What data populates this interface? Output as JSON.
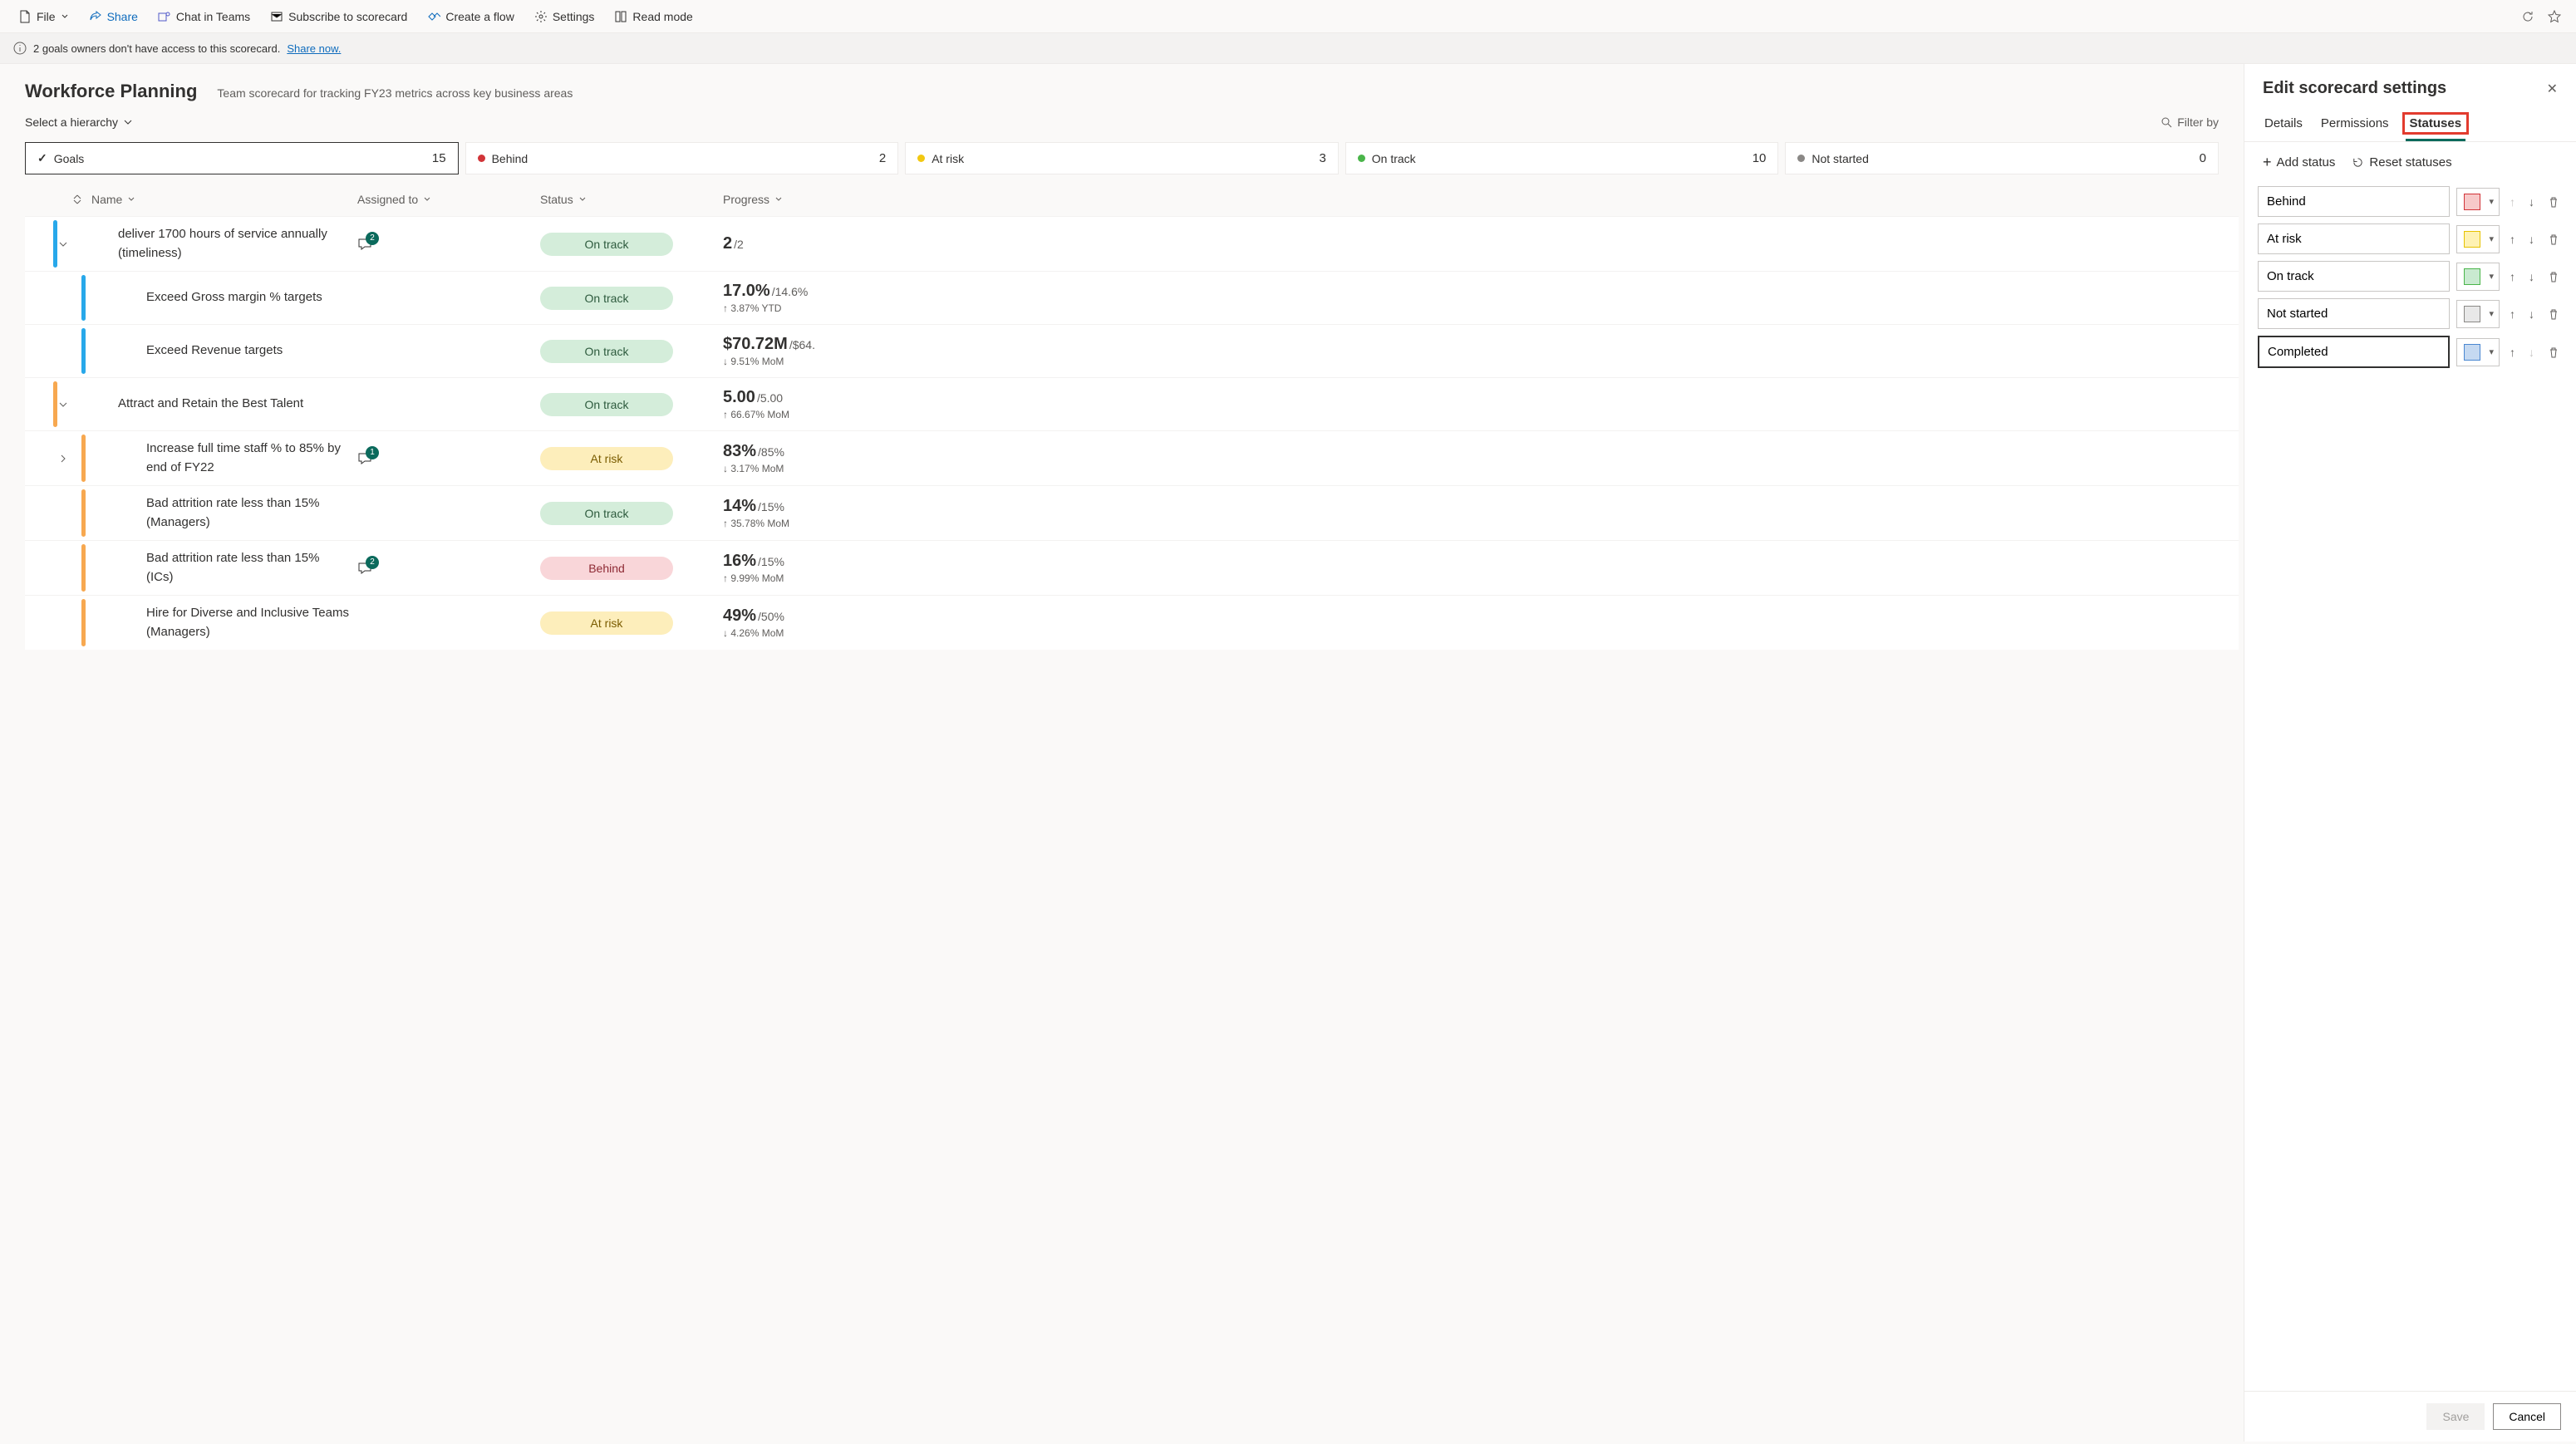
{
  "toolbar": {
    "file": "File",
    "share": "Share",
    "chat": "Chat in Teams",
    "subscribe": "Subscribe to scorecard",
    "flow": "Create a flow",
    "settings": "Settings",
    "readmode": "Read mode"
  },
  "banner": {
    "text": "2 goals owners don't have access to this scorecard.",
    "link": "Share now."
  },
  "page": {
    "title": "Workforce Planning",
    "subtitle": "Team scorecard for tracking FY23 metrics across key business areas",
    "hierarchy": "Select a hierarchy",
    "filter": "Filter by"
  },
  "summary": [
    {
      "label": "Goals",
      "count": "15",
      "selected": true,
      "type": "check"
    },
    {
      "label": "Behind",
      "count": "2",
      "color": "#d13438"
    },
    {
      "label": "At risk",
      "count": "3",
      "color": "#f2c811"
    },
    {
      "label": "On track",
      "count": "10",
      "color": "#4ab54a"
    },
    {
      "label": "Not started",
      "count": "0",
      "color": "#8a8886"
    }
  ],
  "columns": {
    "name": "Name",
    "assigned": "Assigned to",
    "status": "Status",
    "progress": "Progress"
  },
  "rows": [
    {
      "accent": "#28a8ea",
      "child": false,
      "caret": "down",
      "name": "deliver 1700 hours of service annually (timeliness)",
      "comments": "2",
      "status": "On track",
      "statusClass": "pill-ontrack",
      "val": "2",
      "target": "/2",
      "trend": ""
    },
    {
      "accent": "#28a8ea",
      "child": true,
      "caret": "",
      "name": "Exceed Gross margin % targets",
      "comments": "",
      "status": "On track",
      "statusClass": "pill-ontrack",
      "val": "17.0%",
      "target": "/14.6%",
      "trend": "↑ 3.87% YTD"
    },
    {
      "accent": "#28a8ea",
      "child": true,
      "caret": "",
      "name": "Exceed Revenue targets",
      "comments": "",
      "status": "On track",
      "statusClass": "pill-ontrack",
      "val": "$70.72M",
      "target": "/$64.",
      "trend": "↓ 9.51% MoM"
    },
    {
      "accent": "#f7a850",
      "child": false,
      "caret": "down",
      "name": "Attract and Retain the Best Talent",
      "comments": "",
      "status": "On track",
      "statusClass": "pill-ontrack",
      "val": "5.00",
      "target": "/5.00",
      "trend": "↑ 66.67% MoM"
    },
    {
      "accent": "#f7a850",
      "child": true,
      "caret": "right",
      "name": "Increase full time staff % to 85% by end of FY22",
      "comments": "1",
      "status": "At risk",
      "statusClass": "pill-atrisk",
      "val": "83%",
      "target": "/85%",
      "trend": "↓ 3.17% MoM"
    },
    {
      "accent": "#f7a850",
      "child": true,
      "caret": "",
      "name": "Bad attrition rate less than 15% (Managers)",
      "comments": "",
      "status": "On track",
      "statusClass": "pill-ontrack",
      "val": "14%",
      "target": "/15%",
      "trend": "↑ 35.78% MoM"
    },
    {
      "accent": "#f7a850",
      "child": true,
      "caret": "",
      "name": "Bad attrition rate less than 15% (ICs)",
      "comments": "2",
      "status": "Behind",
      "statusClass": "pill-behind",
      "val": "16%",
      "target": "/15%",
      "trend": "↑ 9.99% MoM"
    },
    {
      "accent": "#f7a850",
      "child": true,
      "caret": "",
      "name": "Hire for Diverse and Inclusive Teams (Managers)",
      "comments": "",
      "status": "At risk",
      "statusClass": "pill-atrisk",
      "val": "49%",
      "target": "/50%",
      "trend": "↓ 4.26% MoM"
    }
  ],
  "panel": {
    "title": "Edit scorecard settings",
    "tabs": {
      "details": "Details",
      "permissions": "Permissions",
      "statuses": "Statuses"
    },
    "addStatus": "Add status",
    "reset": "Reset statuses",
    "statuses": [
      {
        "name": "Behind",
        "color": "#f7c9c9",
        "border": "#d13438",
        "upDisabled": true
      },
      {
        "name": "At risk",
        "color": "#fef2b3",
        "border": "#e6c200"
      },
      {
        "name": "On track",
        "color": "#c9ead0",
        "border": "#4ab54a"
      },
      {
        "name": "Not started",
        "color": "#e8e8e8",
        "border": "#8a8886"
      },
      {
        "name": "Completed",
        "color": "#c5d9f1",
        "border": "#4a87d1",
        "editing": true,
        "downDisabled": true
      }
    ],
    "save": "Save",
    "cancel": "Cancel"
  }
}
